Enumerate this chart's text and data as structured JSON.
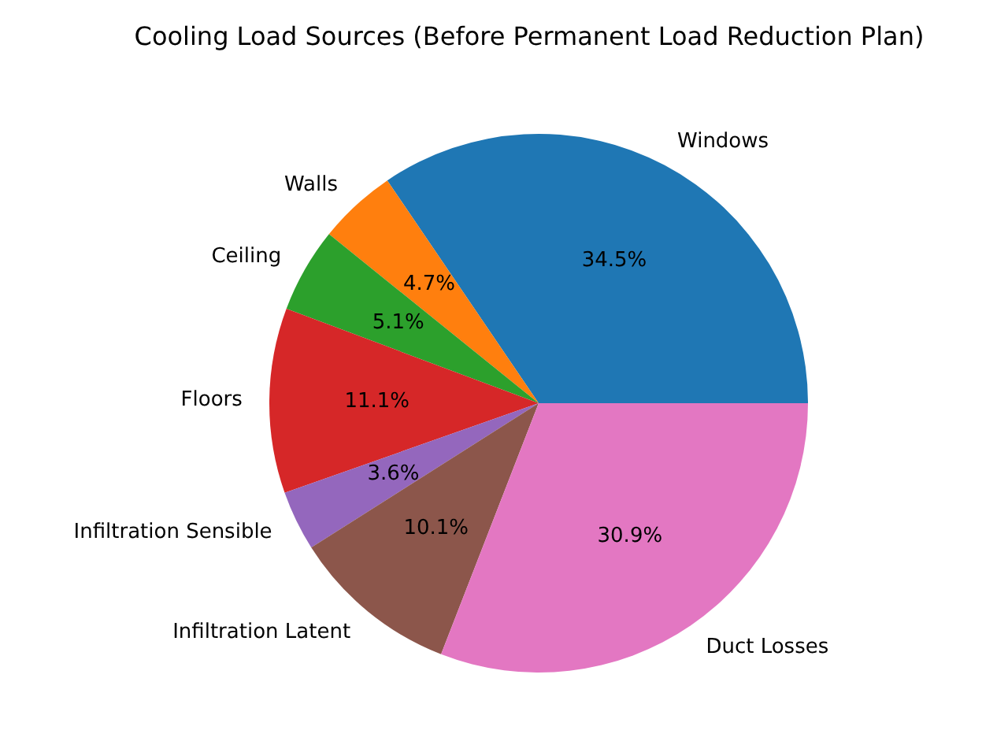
{
  "chart_data": {
    "type": "pie",
    "title": "Cooling Load Sources (Before Permanent Load Reduction Plan)",
    "categories": [
      "Windows",
      "Walls",
      "Ceiling",
      "Floors",
      "Infiltration Sensible",
      "Infiltration Latent",
      "Duct Losses"
    ],
    "values": [
      34.5,
      4.7,
      5.1,
      11.1,
      3.6,
      10.1,
      30.9
    ],
    "colors": [
      "#1f77b4",
      "#ff7f0e",
      "#2ca02c",
      "#d62728",
      "#9467bd",
      "#8c564b",
      "#e377c2"
    ],
    "value_labels": [
      "34.5%",
      "4.7%",
      "5.1%",
      "11.1%",
      "3.6%",
      "10.1%",
      "30.9%"
    ]
  }
}
